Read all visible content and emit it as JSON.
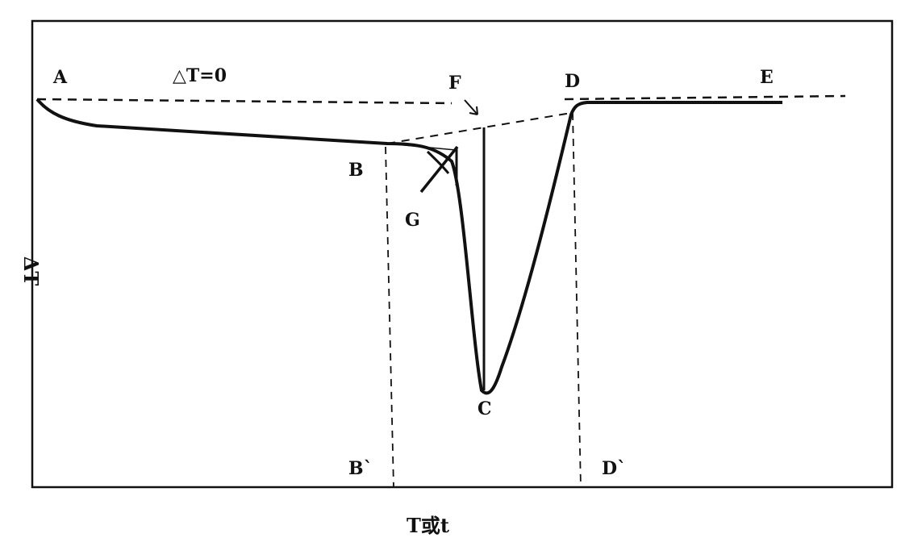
{
  "chart_data": {
    "type": "line",
    "title": "",
    "xlabel": "T或t",
    "ylabel": "ΔT",
    "baseline_label": "△T=0",
    "grid": false,
    "legend": "none",
    "point_labels": {
      "A": "A",
      "B": "B",
      "C": "C",
      "D": "D",
      "E": "E",
      "F": "F",
      "G": "G",
      "B_prime": "B`",
      "D_prime": "D`"
    },
    "series": [
      {
        "style": "solid",
        "points": [
          [
            0.0,
            0.96
          ],
          [
            0.008,
            0.94
          ],
          [
            0.03,
            0.913
          ],
          [
            0.06,
            0.9
          ],
          [
            0.1,
            0.895
          ],
          [
            0.2,
            0.887
          ],
          [
            0.3,
            0.877
          ],
          [
            0.4,
            0.866
          ],
          [
            0.418,
            0.864
          ],
          [
            0.45,
            0.855
          ],
          [
            0.48,
            0.838
          ],
          [
            0.5,
            0.815
          ],
          [
            0.505,
            0.8
          ],
          [
            0.515,
            0.76
          ],
          [
            0.52,
            0.7
          ],
          [
            0.525,
            0.6
          ],
          [
            0.53,
            0.5
          ],
          [
            0.535,
            0.4
          ],
          [
            0.54,
            0.3
          ],
          [
            0.545,
            0.24
          ],
          [
            0.55,
            0.214
          ],
          [
            0.555,
            0.214
          ],
          [
            0.56,
            0.23
          ],
          [
            0.57,
            0.29
          ],
          [
            0.58,
            0.38
          ],
          [
            0.6,
            0.53
          ],
          [
            0.62,
            0.7
          ],
          [
            0.635,
            0.82
          ],
          [
            0.645,
            0.885
          ],
          [
            0.66,
            0.95
          ],
          [
            0.7,
            0.958
          ],
          [
            0.8,
            0.958
          ],
          [
            0.87,
            0.958
          ]
        ]
      },
      {
        "style": "dashed",
        "points": [
          [
            0.0,
            0.958
          ],
          [
            0.95,
            0.966
          ]
        ]
      }
    ]
  }
}
